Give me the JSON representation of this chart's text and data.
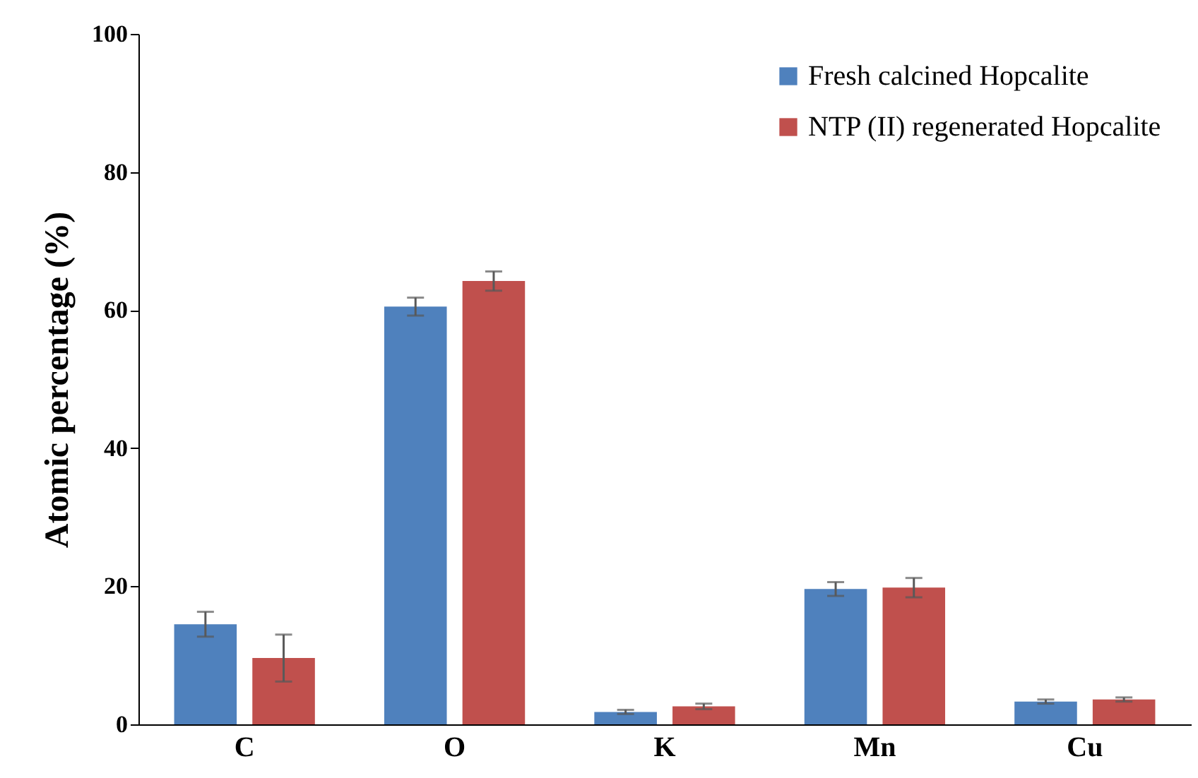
{
  "chart_data": {
    "type": "bar",
    "ylabel": "Atomic percentage (%)",
    "categories": [
      "C",
      "O",
      "K",
      "Mn",
      "Cu"
    ],
    "series": [
      {
        "name": "Fresh calcined Hopcalite",
        "color": "#4f81bd",
        "values": [
          14.5,
          60.5,
          1.8,
          19.6,
          3.3
        ],
        "errors": [
          1.8,
          1.3,
          0.3,
          1.0,
          0.3
        ]
      },
      {
        "name": "NTP (II) regenerated Hopcalite",
        "color": "#c0504d",
        "values": [
          9.6,
          64.2,
          2.6,
          19.8,
          3.6
        ],
        "errors": [
          3.4,
          1.4,
          0.4,
          1.4,
          0.3
        ]
      }
    ],
    "ylim": [
      0,
      100
    ],
    "yticks": [
      0,
      20,
      40,
      60,
      80,
      100
    ],
    "legend": "top right"
  }
}
